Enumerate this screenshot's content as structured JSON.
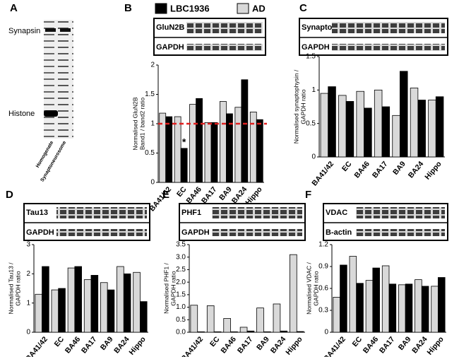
{
  "panel_letters": [
    "A",
    "B",
    "C",
    "D",
    "E",
    "F"
  ],
  "panel_a": {
    "bands": [
      "Synapsin",
      "Histone"
    ],
    "lanes": [
      "Homogenate",
      "Synaptoneurosome"
    ]
  },
  "blot_labels": [
    [
      "GluN2B",
      "GAPDH"
    ],
    [
      "Synapto",
      "GAPDH"
    ],
    [
      "Tau13",
      "GAPDH"
    ],
    [
      "PHF1",
      "GAPDH"
    ],
    [
      "VDAC",
      "B-actin"
    ]
  ],
  "chart_data": [
    {
      "type": "bar",
      "ylabel": [
        "Normalised GluN2B",
        "Band1 / band2 ratio"
      ],
      "categories": [
        "BA41/42",
        "EC",
        "BA46",
        "BA17",
        "BA9",
        "BA24",
        "Hippo"
      ],
      "series": [
        {
          "name": "AD",
          "color": "#d9d9d9",
          "values": [
            1.18,
            1.12,
            1.33,
            1.02,
            1.38,
            1.28,
            1.2
          ]
        },
        {
          "name": "LBC1936",
          "color": "#000000",
          "values": [
            1.12,
            0.58,
            1.43,
            1.02,
            1.17,
            1.75,
            1.07
          ]
        }
      ],
      "ylim": [
        0,
        2
      ],
      "yticks": [
        0,
        0.5,
        1,
        1.5,
        2
      ],
      "reference_line": 1,
      "reference_color": "#e02020",
      "annotations": [
        {
          "text": "*",
          "x": "EC"
        }
      ]
    },
    {
      "type": "bar",
      "ylabel": [
        "Normalised synaptophysin /",
        "GAPDH ratio"
      ],
      "categories": [
        "BA41/42",
        "EC",
        "BA46",
        "BA17",
        "BA9",
        "BA24",
        "Hippo"
      ],
      "series": [
        {
          "color": "#d9d9d9",
          "values": [
            0.95,
            0.92,
            0.98,
            1.0,
            0.62,
            1.03,
            0.85
          ]
        },
        {
          "color": "#000000",
          "values": [
            1.05,
            0.83,
            0.73,
            0.75,
            1.28,
            0.85,
            0.9
          ]
        }
      ],
      "ylim": [
        0,
        1.5
      ],
      "yticks": [
        0,
        0.5,
        1,
        1.5
      ]
    },
    {
      "type": "bar",
      "ylabel": [
        "Normalised Tau13 /",
        "GAPDH ratio"
      ],
      "categories": [
        "BA41/42",
        "EC",
        "BA46",
        "BA17",
        "BA9",
        "BA24",
        "Hippo"
      ],
      "series": [
        {
          "color": "#d9d9d9",
          "values": [
            1.3,
            1.45,
            2.2,
            1.8,
            1.7,
            2.25,
            2.05
          ]
        },
        {
          "color": "#000000",
          "values": [
            2.25,
            1.5,
            2.25,
            1.95,
            1.45,
            2.0,
            1.05
          ]
        }
      ],
      "ylim": [
        0,
        3
      ],
      "yticks": [
        0,
        1,
        2,
        3
      ]
    },
    {
      "type": "bar",
      "ylabel": [
        "Normalised PHF1 /",
        "GAPDH ratio"
      ],
      "categories": [
        "BA41/42",
        "EC",
        "BA46",
        "BA17",
        "BA9",
        "BA24",
        "Hippo"
      ],
      "series": [
        {
          "color": "#d9d9d9",
          "values": [
            1.08,
            1.06,
            0.55,
            0.2,
            0.97,
            1.13,
            3.1
          ]
        },
        {
          "color": "#000000",
          "values": [
            0.02,
            0.02,
            0.02,
            0.05,
            0.02,
            0.05,
            0.03
          ]
        }
      ],
      "ylim": [
        0,
        3.5
      ],
      "yticks": [
        {
          "value": 0,
          "label": "0.0"
        },
        0.5,
        {
          "value": 1,
          "label": "1.0"
        },
        1.5,
        {
          "value": 2,
          "label": "2.0"
        },
        2.5,
        {
          "value": 3,
          "label": "3.0"
        },
        3.5
      ]
    },
    {
      "type": "bar",
      "ylabel": [
        "Normalised VDAC /",
        "GAPDH ratio"
      ],
      "categories": [
        "BA41/42",
        "EC",
        "BA46",
        "BA17",
        "BA9",
        "BA24",
        "Hippo"
      ],
      "series": [
        {
          "color": "#d9d9d9",
          "values": [
            0.48,
            1.04,
            0.71,
            0.91,
            0.65,
            0.72,
            0.63
          ]
        },
        {
          "color": "#000000",
          "values": [
            0.92,
            0.67,
            0.88,
            0.66,
            0.66,
            0.63,
            0.75
          ]
        }
      ],
      "ylim": [
        0,
        1.2
      ],
      "yticks": [
        0,
        0.3,
        0.6,
        0.9,
        1.2
      ]
    }
  ]
}
